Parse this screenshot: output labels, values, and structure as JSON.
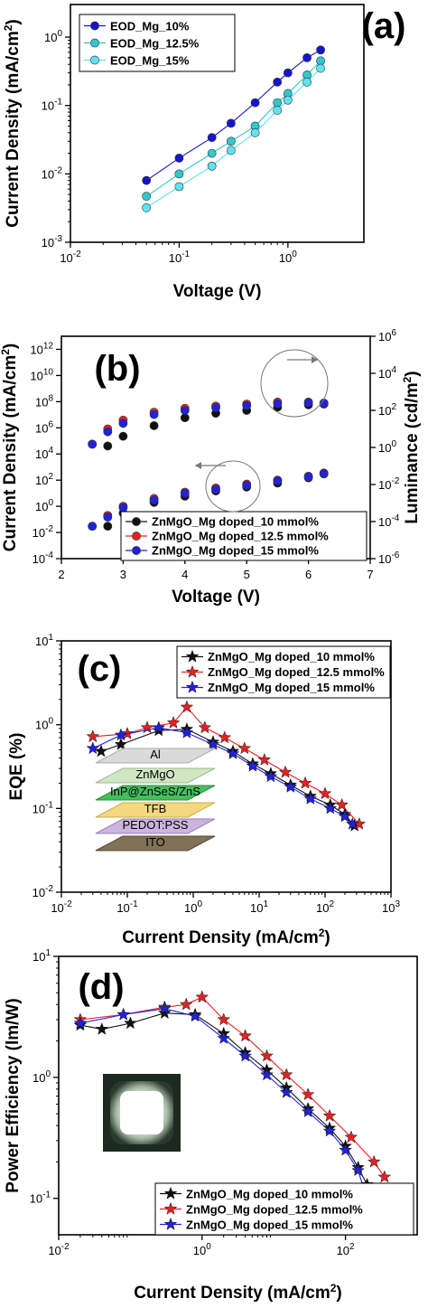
{
  "chart_data": [
    {
      "type": "scatter",
      "panel_label": "(a)",
      "xlabel": "Voltage (V)",
      "ylabel": "Current Density (mA/cm²)",
      "xscale": "log",
      "yscale": "log",
      "xlim": [
        0.01,
        5
      ],
      "ylim": [
        0.001,
        3
      ],
      "xticks": [
        {
          "v": 0.01,
          "m": "10",
          "e": "-2"
        },
        {
          "v": 0.1,
          "m": "10",
          "e": "-1"
        },
        {
          "v": 1,
          "m": "10",
          "e": "0"
        }
      ],
      "yticks": [
        {
          "v": 0.001,
          "m": "10",
          "e": "-3"
        },
        {
          "v": 0.01,
          "m": "10",
          "e": "-2"
        },
        {
          "v": 0.1,
          "m": "10",
          "e": "-1"
        },
        {
          "v": 1,
          "m": "10",
          "e": "0"
        }
      ],
      "legend_placement": "top-left",
      "series": [
        {
          "name": "EOD_Mg_10%",
          "color": "#1515cc",
          "marker": "circle",
          "line": true,
          "x": [
            0.05,
            0.1,
            0.2,
            0.3,
            0.5,
            0.8,
            1.0,
            1.5,
            2.0
          ],
          "y": [
            0.008,
            0.017,
            0.034,
            0.055,
            0.11,
            0.22,
            0.3,
            0.5,
            0.65
          ]
        },
        {
          "name": "EOD_Mg_12.5%",
          "color": "#33c6cc",
          "marker": "circle",
          "line": true,
          "x": [
            0.05,
            0.1,
            0.2,
            0.3,
            0.5,
            0.8,
            1.0,
            1.5,
            2.0
          ],
          "y": [
            0.0047,
            0.01,
            0.02,
            0.03,
            0.05,
            0.11,
            0.15,
            0.28,
            0.45
          ]
        },
        {
          "name": "EOD_Mg_15%",
          "color": "#5fe3f0",
          "marker": "circle",
          "line": true,
          "x": [
            0.05,
            0.1,
            0.2,
            0.3,
            0.5,
            0.8,
            1.0,
            1.5,
            2.0
          ],
          "y": [
            0.0032,
            0.0065,
            0.013,
            0.022,
            0.04,
            0.085,
            0.12,
            0.22,
            0.35
          ]
        }
      ]
    },
    {
      "type": "scatter",
      "panel_label": "(b)",
      "xlabel": "Voltage (V)",
      "ylabel": "Current Density (mA/cm²)",
      "ylabel_right": "Luminance (cd/m²)",
      "xscale": "linear",
      "yscale": "log",
      "yscale_right": "log",
      "xlim": [
        2,
        7
      ],
      "ylim": [
        0.0001,
        10000000000000.0
      ],
      "ylim_right": [
        1e-06,
        1000000.0
      ],
      "xticks": [
        {
          "v": 2,
          "m": "2",
          "e": ""
        },
        {
          "v": 3,
          "m": "3",
          "e": ""
        },
        {
          "v": 4,
          "m": "4",
          "e": ""
        },
        {
          "v": 5,
          "m": "5",
          "e": ""
        },
        {
          "v": 6,
          "m": "6",
          "e": ""
        },
        {
          "v": 7,
          "m": "7",
          "e": ""
        }
      ],
      "yticks": [
        {
          "v": 0.0001,
          "m": "10",
          "e": "-4"
        },
        {
          "v": 0.01,
          "m": "10",
          "e": "-2"
        },
        {
          "v": 1,
          "m": "10",
          "e": "0"
        },
        {
          "v": 100,
          "m": "10",
          "e": "2"
        },
        {
          "v": 10000,
          "m": "10",
          "e": "4"
        },
        {
          "v": 1000000,
          "m": "10",
          "e": "6"
        },
        {
          "v": 100000000,
          "m": "10",
          "e": "8"
        },
        {
          "v": 10000000000,
          "m": "10",
          "e": "10"
        },
        {
          "v": 1000000000000,
          "m": "10",
          "e": "12"
        }
      ],
      "yticks_right": [
        {
          "v": 1e-06,
          "m": "10",
          "e": "-6"
        },
        {
          "v": 0.0001,
          "m": "10",
          "e": "-4"
        },
        {
          "v": 0.01,
          "m": "10",
          "e": "-2"
        },
        {
          "v": 1,
          "m": "10",
          "e": "0"
        },
        {
          "v": 100,
          "m": "10",
          "e": "2"
        },
        {
          "v": 10000,
          "m": "10",
          "e": "4"
        },
        {
          "v": 1000000,
          "m": "10",
          "e": "6"
        }
      ],
      "legend_placement": "bottom-right",
      "series": [
        {
          "name": "ZnMgO_Mg doped_10 mmol%",
          "color": "#111111",
          "marker": "circle",
          "axis": "left",
          "x": [
            2.75,
            3.0,
            3.5,
            4.0,
            4.5,
            5.0,
            5.5,
            6.0,
            6.25
          ],
          "y": [
            0.03,
            0.3,
            2,
            6,
            15,
            30,
            60,
            150,
            300
          ]
        },
        {
          "name": "ZnMgO_Mg doped_12.5 mmol%",
          "color": "#e52222",
          "marker": "circle",
          "axis": "left",
          "x": [
            2.5,
            2.75,
            3.0,
            3.5,
            4.0,
            4.5,
            5.0,
            5.5,
            6.0,
            6.25
          ],
          "y": [
            0.03,
            0.2,
            1,
            4,
            12,
            25,
            50,
            100,
            200,
            350
          ]
        },
        {
          "name": "ZnMgO_Mg doped_15 mmol%",
          "color": "#2222dd",
          "marker": "circle",
          "axis": "left",
          "x": [
            2.5,
            2.75,
            3.0,
            3.5,
            4.0,
            4.5,
            5.0,
            5.5,
            6.0,
            6.25
          ],
          "y": [
            0.03,
            0.15,
            0.8,
            3,
            10,
            20,
            40,
            90,
            180,
            320
          ]
        },
        {
          "name": "ZnMgO_Mg doped_10 mmol% (luminance)",
          "color": "#111111",
          "marker": "circle",
          "axis": "right",
          "x": [
            2.75,
            3.0,
            3.5,
            4.0,
            4.5,
            5.0,
            5.5,
            6.0,
            6.25
          ],
          "y": [
            1.2,
            4,
            15,
            40,
            70,
            100,
            150,
            200,
            220
          ]
        },
        {
          "name": "ZnMgO_Mg doped_12.5 mmol% (luminance)",
          "color": "#e52222",
          "marker": "circle",
          "axis": "right",
          "x": [
            2.5,
            2.75,
            3.0,
            3.5,
            4.0,
            4.5,
            5.0,
            5.5,
            6.0,
            6.25
          ],
          "y": [
            1.5,
            10,
            30,
            80,
            130,
            170,
            220,
            280,
            280,
            250
          ]
        },
        {
          "name": "ZnMgO_Mg doped_15 mmol% (luminance)",
          "color": "#2222dd",
          "marker": "circle",
          "axis": "right",
          "x": [
            2.5,
            2.75,
            3.0,
            3.5,
            4.0,
            4.5,
            5.0,
            5.5,
            6.0,
            6.25
          ],
          "y": [
            1.5,
            7,
            20,
            60,
            100,
            140,
            180,
            230,
            260,
            240
          ]
        }
      ]
    },
    {
      "type": "scatter",
      "panel_label": "(c)",
      "xlabel": "Current Density (mA/cm²)",
      "ylabel": "EQE (%)",
      "xscale": "log",
      "yscale": "log",
      "xlim": [
        0.01,
        1000
      ],
      "ylim": [
        0.01,
        10
      ],
      "xticks": [
        {
          "v": 0.01,
          "m": "10",
          "e": "-2"
        },
        {
          "v": 0.1,
          "m": "10",
          "e": "-1"
        },
        {
          "v": 1,
          "m": "10",
          "e": "0"
        },
        {
          "v": 10,
          "m": "10",
          "e": "1"
        },
        {
          "v": 100,
          "m": "10",
          "e": "2"
        },
        {
          "v": 1000,
          "m": "10",
          "e": "3"
        }
      ],
      "yticks": [
        {
          "v": 0.01,
          "m": "10",
          "e": "-2"
        },
        {
          "v": 0.1,
          "m": "10",
          "e": "-1"
        },
        {
          "v": 1,
          "m": "10",
          "e": "0"
        },
        {
          "v": 10,
          "m": "10",
          "e": "1"
        }
      ],
      "legend_placement": "top-right",
      "inset_layers": [
        "Al",
        "ZnMgO",
        "InP@ZnSeS/ZnS",
        "TFB",
        "PEDOT:PSS",
        "ITO"
      ],
      "series": [
        {
          "name": "ZnMgO_Mg doped_10 mmol%",
          "color": "#111111",
          "marker": "star",
          "line": true,
          "x": [
            0.04,
            0.08,
            0.3,
            0.8,
            2,
            4,
            8,
            15,
            30,
            60,
            120,
            200,
            280
          ],
          "y": [
            0.48,
            0.58,
            0.85,
            0.88,
            0.62,
            0.48,
            0.34,
            0.26,
            0.19,
            0.14,
            0.11,
            0.085,
            0.062
          ]
        },
        {
          "name": "ZnMgO_Mg doped_12.5 mmol%",
          "color": "#e52222",
          "marker": "star",
          "line": true,
          "x": [
            0.03,
            0.1,
            0.2,
            0.5,
            0.8,
            1.5,
            3,
            6,
            12,
            25,
            50,
            100,
            180,
            330
          ],
          "y": [
            0.72,
            0.78,
            0.92,
            1.05,
            1.62,
            0.92,
            0.7,
            0.52,
            0.38,
            0.27,
            0.2,
            0.15,
            0.11,
            0.065
          ]
        },
        {
          "name": "ZnMgO_Mg doped_15 mmol%",
          "color": "#2222dd",
          "marker": "star",
          "line": true,
          "x": [
            0.03,
            0.08,
            0.3,
            0.8,
            2,
            4,
            8,
            15,
            30,
            60,
            120,
            200,
            260
          ],
          "y": [
            0.52,
            0.75,
            0.92,
            0.8,
            0.58,
            0.45,
            0.32,
            0.24,
            0.18,
            0.13,
            0.1,
            0.08,
            0.065
          ]
        }
      ]
    },
    {
      "type": "scatter",
      "panel_label": "(d)",
      "xlabel": "Current Density (mA/cm²)",
      "ylabel": "Power Efficiency (lm/W)",
      "xscale": "log",
      "yscale": "log",
      "xlim": [
        0.01,
        1000
      ],
      "ylim": [
        0.05,
        10
      ],
      "xticks": [
        {
          "v": 0.01,
          "m": "10",
          "e": "-2"
        },
        {
          "v": 1,
          "m": "10",
          "e": "0"
        },
        {
          "v": 100,
          "m": "10",
          "e": "2"
        }
      ],
      "yticks": [
        {
          "v": 0.1,
          "m": "10",
          "e": "-1"
        },
        {
          "v": 1,
          "m": "10",
          "e": "0"
        },
        {
          "v": 10,
          "m": "10",
          "e": "1"
        }
      ],
      "legend_placement": "bottom-right",
      "series": [
        {
          "name": "ZnMgO_Mg doped_10 mmol%",
          "color": "#111111",
          "marker": "star",
          "line": true,
          "x": [
            0.02,
            0.04,
            0.1,
            0.3,
            0.8,
            2,
            4,
            8,
            15,
            30,
            60,
            100,
            150,
            200
          ],
          "y": [
            2.7,
            2.5,
            2.8,
            3.4,
            3.3,
            2.3,
            1.6,
            1.15,
            0.82,
            0.55,
            0.38,
            0.27,
            0.18,
            0.13
          ]
        },
        {
          "name": "ZnMgO_Mg doped_12.5 mmol%",
          "color": "#e52222",
          "marker": "star",
          "line": true,
          "x": [
            0.02,
            0.08,
            0.3,
            0.6,
            1.0,
            2,
            4,
            8,
            15,
            30,
            60,
            120,
            250,
            350
          ],
          "y": [
            3.0,
            3.3,
            3.8,
            4.0,
            4.6,
            3.0,
            2.2,
            1.5,
            1.05,
            0.72,
            0.48,
            0.32,
            0.2,
            0.15
          ]
        },
        {
          "name": "ZnMgO_Mg doped_15 mmol%",
          "color": "#2222dd",
          "marker": "star",
          "line": true,
          "x": [
            0.02,
            0.08,
            0.3,
            0.8,
            2,
            4,
            8,
            15,
            30,
            60,
            100,
            150,
            180
          ],
          "y": [
            2.8,
            3.3,
            3.7,
            3.2,
            2.1,
            1.5,
            1.05,
            0.75,
            0.52,
            0.36,
            0.25,
            0.17,
            0.12
          ]
        }
      ]
    }
  ]
}
